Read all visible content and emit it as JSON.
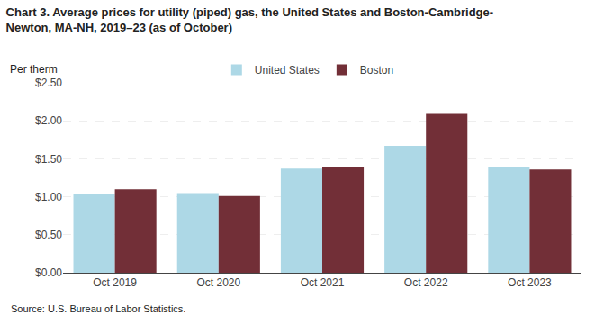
{
  "chart_data": {
    "type": "bar",
    "title": "Chart 3. Average prices for utility (piped) gas, the United States and Boston-Cambridge-Newton, MA-NH, 2019–23 (as of October)",
    "ylabel": "Per therm",
    "annotations": [
      "Source: U.S. Bureau of Labor Statistics."
    ],
    "categories": [
      "Oct 2019",
      "Oct 2020",
      "Oct 2021",
      "Oct 2022",
      "Oct 2023"
    ],
    "series": [
      {
        "name": "United States",
        "color": "#ADD8E6",
        "values": [
          1.03,
          1.05,
          1.37,
          1.67,
          1.39
        ]
      },
      {
        "name": "Boston",
        "color": "#722F37",
        "values": [
          1.1,
          1.01,
          1.39,
          2.09,
          1.36
        ]
      }
    ],
    "ylim": [
      0,
      2.5
    ],
    "yticks": [
      {
        "value": 0.0,
        "label": "$0.00"
      },
      {
        "value": 0.5,
        "label": "$0.50"
      },
      {
        "value": 1.0,
        "label": "$1.00"
      },
      {
        "value": 1.5,
        "label": "$1.50"
      },
      {
        "value": 2.0,
        "label": "$2.00"
      },
      {
        "value": 2.5,
        "label": "$2.50"
      }
    ],
    "grid": true,
    "legend": "top"
  }
}
